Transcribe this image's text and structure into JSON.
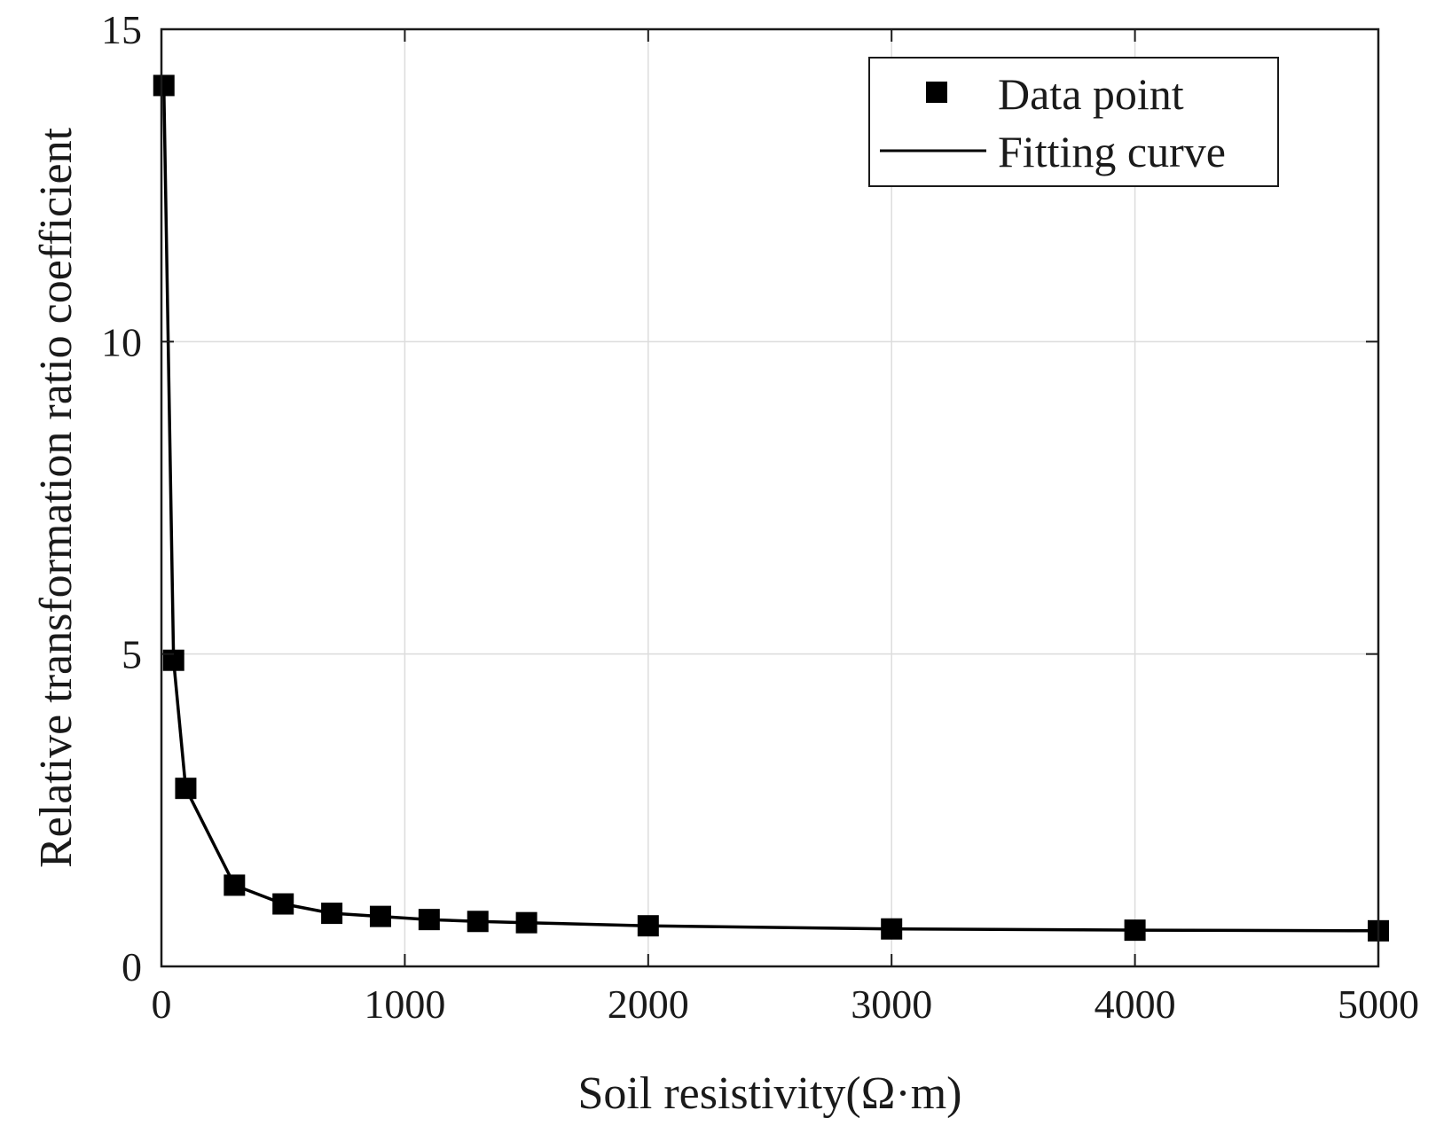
{
  "chart_data": {
    "type": "line",
    "title": "",
    "xlabel": "Soil resistivity(Ω·m)",
    "ylabel": "Relative transformation ratio coefficient",
    "xlim": [
      0,
      5000
    ],
    "ylim": [
      0,
      15
    ],
    "x_ticks": [
      0,
      1000,
      2000,
      3000,
      4000,
      5000
    ],
    "y_ticks": [
      0,
      5,
      10,
      15
    ],
    "x_tick_labels": [
      "0",
      "1000",
      "2000",
      "3000",
      "4000",
      "5000"
    ],
    "y_tick_labels": [
      "0",
      "5",
      "10",
      "15"
    ],
    "grid": true,
    "legend_position": "top-right",
    "series": [
      {
        "name": "Data point",
        "kind": "markers",
        "marker": "square",
        "color": "#000000",
        "x": [
          10,
          50,
          100,
          300,
          500,
          700,
          900,
          1100,
          1300,
          1500,
          2000,
          3000,
          4000,
          5000
        ],
        "y": [
          14.1,
          4.9,
          2.85,
          1.3,
          1.0,
          0.85,
          0.8,
          0.75,
          0.72,
          0.7,
          0.65,
          0.6,
          0.58,
          0.57
        ]
      },
      {
        "name": "Fitting curve",
        "kind": "line",
        "color": "#000000",
        "x": [
          10,
          50,
          100,
          300,
          500,
          700,
          900,
          1100,
          1300,
          1500,
          2000,
          3000,
          4000,
          5000
        ],
        "y": [
          14.1,
          4.9,
          2.85,
          1.3,
          1.0,
          0.85,
          0.8,
          0.75,
          0.72,
          0.7,
          0.65,
          0.6,
          0.58,
          0.57
        ]
      }
    ]
  }
}
